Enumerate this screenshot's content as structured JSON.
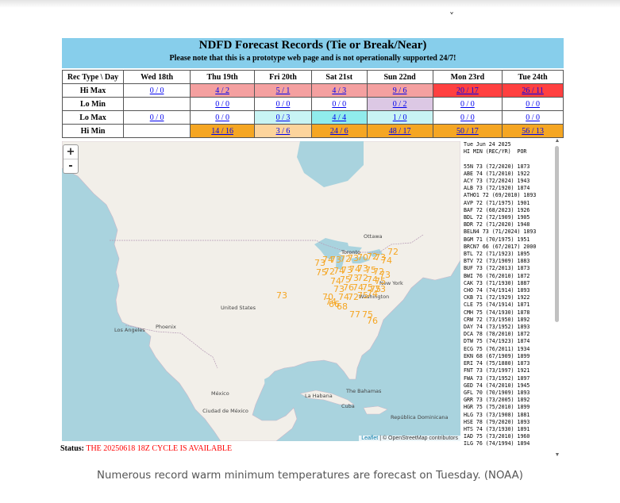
{
  "header": {
    "title": "NDFD Forecast Records (Tie or Break/Near)",
    "notice": "Please note that this is a prototype web page and is not operationally supported 24/7!"
  },
  "table": {
    "corner": "Rec Type \\ Day",
    "days": [
      "Wed 18th",
      "Thu 19th",
      "Fri 20th",
      "Sat 21st",
      "Sun 22nd",
      "Mon 23rd",
      "Tue 24th"
    ],
    "rows": [
      {
        "label": "Hi Max",
        "cells": [
          {
            "text": "0 / 0",
            "color": ""
          },
          {
            "text": "4 / 2",
            "color": "pink"
          },
          {
            "text": "5 / 1",
            "color": "pink"
          },
          {
            "text": "4 / 3",
            "color": "pink"
          },
          {
            "text": "9 / 6",
            "color": "pink"
          },
          {
            "text": "20 / 17",
            "color": "red"
          },
          {
            "text": "26 / 11",
            "color": "red"
          }
        ]
      },
      {
        "label": "Lo Min",
        "cells": [
          {
            "text": "",
            "color": ""
          },
          {
            "text": "0 / 0",
            "color": ""
          },
          {
            "text": "0 / 0",
            "color": ""
          },
          {
            "text": "0 / 0",
            "color": ""
          },
          {
            "text": "0 / 2",
            "color": "lilac"
          },
          {
            "text": "0 / 0",
            "color": ""
          },
          {
            "text": "0 / 0",
            "color": ""
          }
        ]
      },
      {
        "label": "Lo Max",
        "cells": [
          {
            "text": "0 / 0",
            "color": ""
          },
          {
            "text": "0 / 0",
            "color": ""
          },
          {
            "text": "0 / 3",
            "color": "cyan"
          },
          {
            "text": "4 / 4",
            "color": "aqua"
          },
          {
            "text": "1 / 0",
            "color": "cyan"
          },
          {
            "text": "0 / 0",
            "color": ""
          },
          {
            "text": "0 / 0",
            "color": ""
          }
        ]
      },
      {
        "label": "Hi Min",
        "cells": [
          {
            "text": "",
            "color": ""
          },
          {
            "text": "14 / 16",
            "color": "orange"
          },
          {
            "text": "3 / 6",
            "color": "peach"
          },
          {
            "text": "24 / 6",
            "color": "orange"
          },
          {
            "text": "48 / 17",
            "color": "orange"
          },
          {
            "text": "50 / 17",
            "color": "orange"
          },
          {
            "text": "56 / 13",
            "color": "orange"
          }
        ]
      }
    ]
  },
  "colors": {
    "pink": "#f4a0a0",
    "red": "#ff4040",
    "lilac": "#dcc8e4",
    "cyan": "#c8f4f4",
    "aqua": "#90ecec",
    "peach": "#fcd49c",
    "orange": "#f5a623",
    "marker": "#f5a623",
    "banner": "#87ceeb"
  },
  "map": {
    "zoom_in": "+",
    "zoom_out": "-",
    "labels": {
      "ottawa": "Ottawa",
      "toronto": "Toronto",
      "new_york": "New York",
      "washington": "Washington",
      "united_states": "United States",
      "phoenix": "Phoenix",
      "los_angeles": "Los Angeles",
      "mexico": "México",
      "ciudad_de_mexico": "Ciudad de México",
      "la_habana": "La Habana",
      "bahamas": "The Bahamas",
      "cuba": "Cuba",
      "republica_dominicana": "República Dominicana"
    },
    "markers": [
      "72",
      "73",
      "74",
      "73",
      "72",
      "73",
      "70",
      "72",
      "73",
      "74",
      "75",
      "72",
      "74",
      "73",
      "74",
      "73",
      "75",
      "72",
      "73",
      "74",
      "75",
      "73",
      "72",
      "74",
      "75",
      "73",
      "76",
      "74",
      "75",
      "75",
      "74",
      "72",
      "75",
      "74",
      "73",
      "73",
      "70",
      "74",
      "66",
      "68",
      "77",
      "75",
      "76"
    ],
    "attribution_link": "Leaflet",
    "attribution_text": " | © OpenStreetMap contributors"
  },
  "sidebar": {
    "date": "Tue Jun 24 2025",
    "header": "HI MIN (REC/YR)  POR",
    "lines": [
      "55N 73 (72/2020) 1873",
      "ABE 74 (71/2010) 1922",
      "ACY 73 (72/2024) 1943",
      "ALB 73 (72/1920) 1874",
      "ATHO1 72 (69/2010) 1893",
      "AVP 72 (71/1975) 1901",
      "BAF 72 (68/2023) 1926",
      "BDL 72 (72/1909) 1905",
      "BDR 72 (71/2020) 1948",
      "BELN4 73 (71/2024) 1893",
      "BGM 71 (70/1975) 1951",
      "BRCN7 66 (67/2017) 2000",
      "BTL 72 (71/1923) 1895",
      "BTV 72 (73/1909) 1883",
      "BUF 73 (72/2013) 1873",
      "BWI 76 (76/2010) 1872",
      "CAK 73 (71/1930) 1887",
      "CHO 74 (74/1914) 1893",
      "CKB 71 (72/1929) 1922",
      "CLE 75 (74/1914) 1871",
      "CMH 75 (74/1930) 1878",
      "CRW 72 (73/1950) 1892",
      "DAY 74 (73/1952) 1893",
      "DCA 78 (78/2010) 1872",
      "DTW 75 (74/1923) 1874",
      "ECG 75 (76/2011) 1934",
      "EKN 68 (67/1909) 1899",
      "ERI 74 (75/1880) 1873",
      "FNT 73 (73/1997) 1921",
      "FWA 73 (73/1952) 1897",
      "GED 74 (74/2010) 1945",
      "GFL 70 (70/1909) 1893",
      "GRR 73 (73/2005) 1892",
      "HGR 75 (75/2010) 1899",
      "HLG 73 (73/1908) 1881",
      "HSE 78 (79/2020) 1893",
      "HTS 74 (73/1930) 1891",
      "IAD 75 (73/2010) 1960",
      "ILG 76 (74/1994) 1894"
    ]
  },
  "status": {
    "label": "Status:",
    "message": "THE 20250618 18Z CYCLE IS AVAILABLE"
  },
  "caption": "Numerous record warm minimum temperatures are forecast on Tuesday. (NOAA)"
}
